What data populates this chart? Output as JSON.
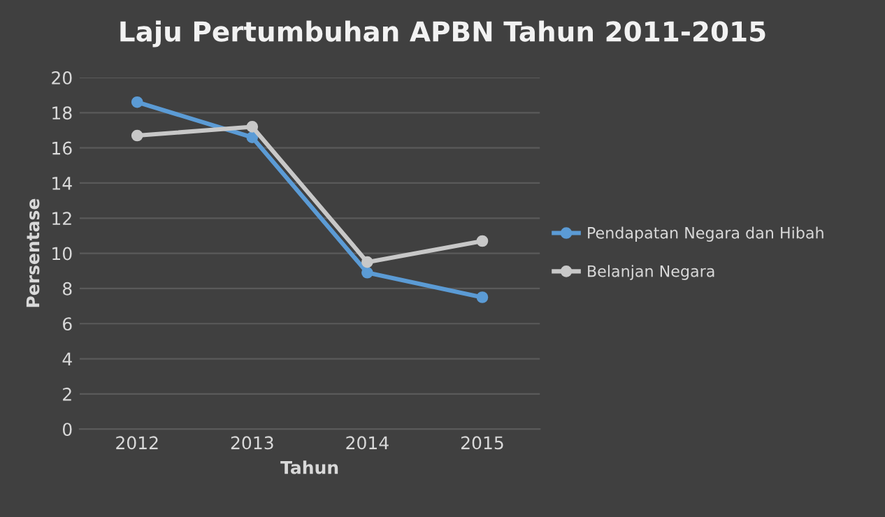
{
  "chart_data": {
    "type": "line",
    "title": "Laju Pertumbuhan APBN Tahun 2011-2015",
    "xlabel": "Tahun",
    "ylabel": "Persentase",
    "categories": [
      "2012",
      "2013",
      "2014",
      "2015"
    ],
    "series": [
      {
        "name": "Pendapatan Negara dan Hibah",
        "color": "#5b9bd5",
        "values": [
          18.6,
          16.6,
          8.9,
          7.5
        ]
      },
      {
        "name": "Belanjan Negara",
        "color": "#c8c8c8",
        "values": [
          16.7,
          17.2,
          9.5,
          10.7
        ]
      }
    ],
    "ylim": [
      0,
      20
    ],
    "yticks": [
      0,
      2,
      4,
      6,
      8,
      10,
      12,
      14,
      16,
      18,
      20
    ],
    "grid": "y",
    "legend": "right",
    "marker": "circle",
    "line_style": "solid"
  }
}
